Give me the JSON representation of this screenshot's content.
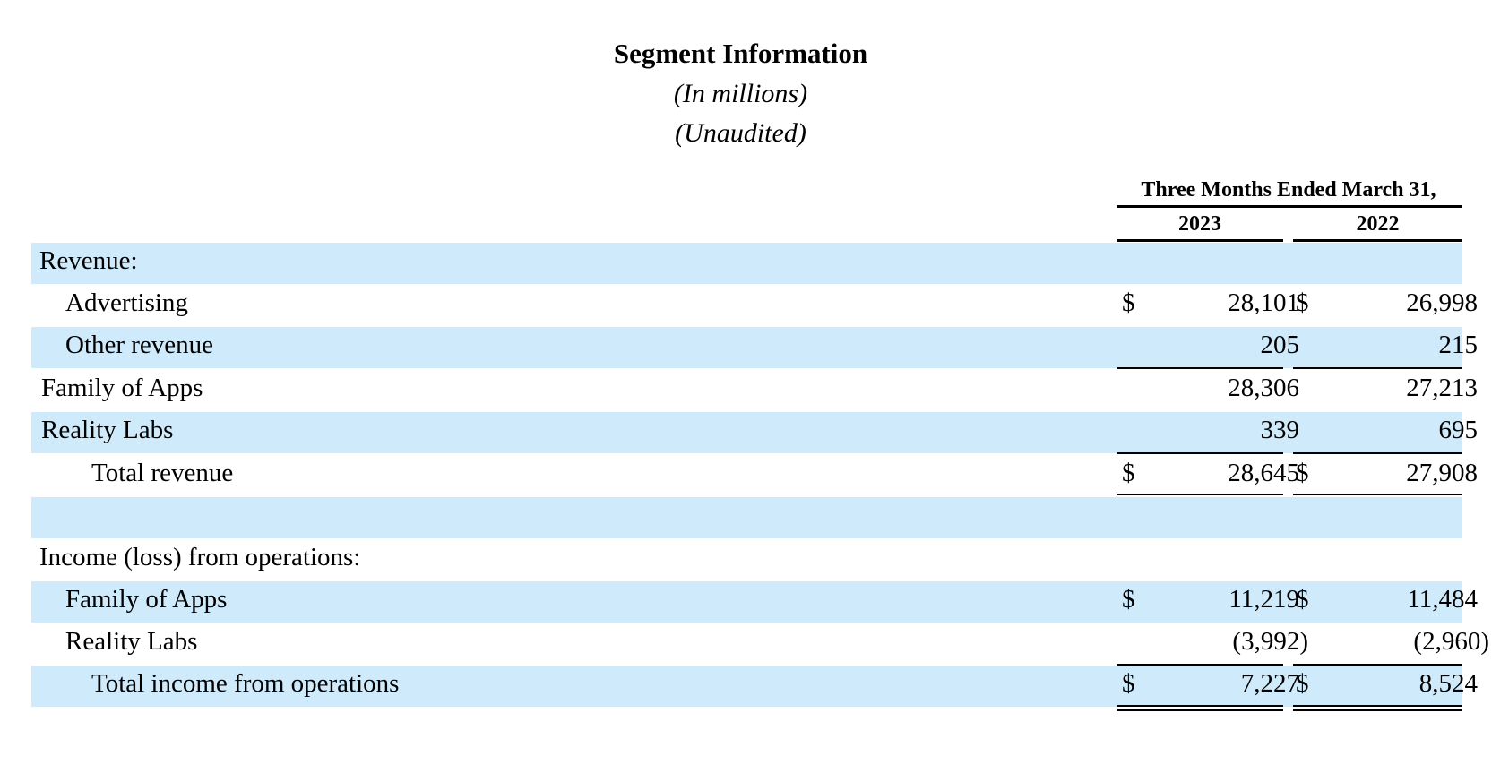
{
  "header": {
    "title": "Segment Information",
    "subtitle_units": "(In millions)",
    "subtitle_audit": "(Unaudited)",
    "period_header": "Three Months Ended March 31,",
    "col_2023": "2023",
    "col_2022": "2022"
  },
  "rows": [
    {
      "label": "Revenue:",
      "cur_a": "",
      "val_a": "",
      "cur_b": "",
      "val_b": ""
    },
    {
      "label": "Advertising",
      "cur_a": "$",
      "val_a": "28,101",
      "cur_b": "$",
      "val_b": "26,998"
    },
    {
      "label": "Other revenue",
      "cur_a": "",
      "val_a": "205",
      "cur_b": "",
      "val_b": "215"
    },
    {
      "label": "Family of Apps",
      "cur_a": "",
      "val_a": "28,306",
      "cur_b": "",
      "val_b": "27,213"
    },
    {
      "label": "Reality Labs",
      "cur_a": "",
      "val_a": "339",
      "cur_b": "",
      "val_b": "695"
    },
    {
      "label": "Total revenue",
      "cur_a": "$",
      "val_a": "28,645",
      "cur_b": "$",
      "val_b": "27,908"
    },
    {
      "label": "",
      "cur_a": "",
      "val_a": "",
      "cur_b": "",
      "val_b": ""
    },
    {
      "label": "Income (loss) from operations:",
      "cur_a": "",
      "val_a": "",
      "cur_b": "",
      "val_b": ""
    },
    {
      "label": "Family of Apps",
      "cur_a": "$",
      "val_a": "11,219",
      "cur_b": "$",
      "val_b": "11,484"
    },
    {
      "label": "Reality Labs",
      "cur_a": "",
      "val_a": "(3,992)",
      "cur_b": "",
      "val_b": "(2,960)"
    },
    {
      "label": "Total income from operations",
      "cur_a": "$",
      "val_a": "7,227",
      "cur_b": "$",
      "val_b": "8,524"
    }
  ]
}
